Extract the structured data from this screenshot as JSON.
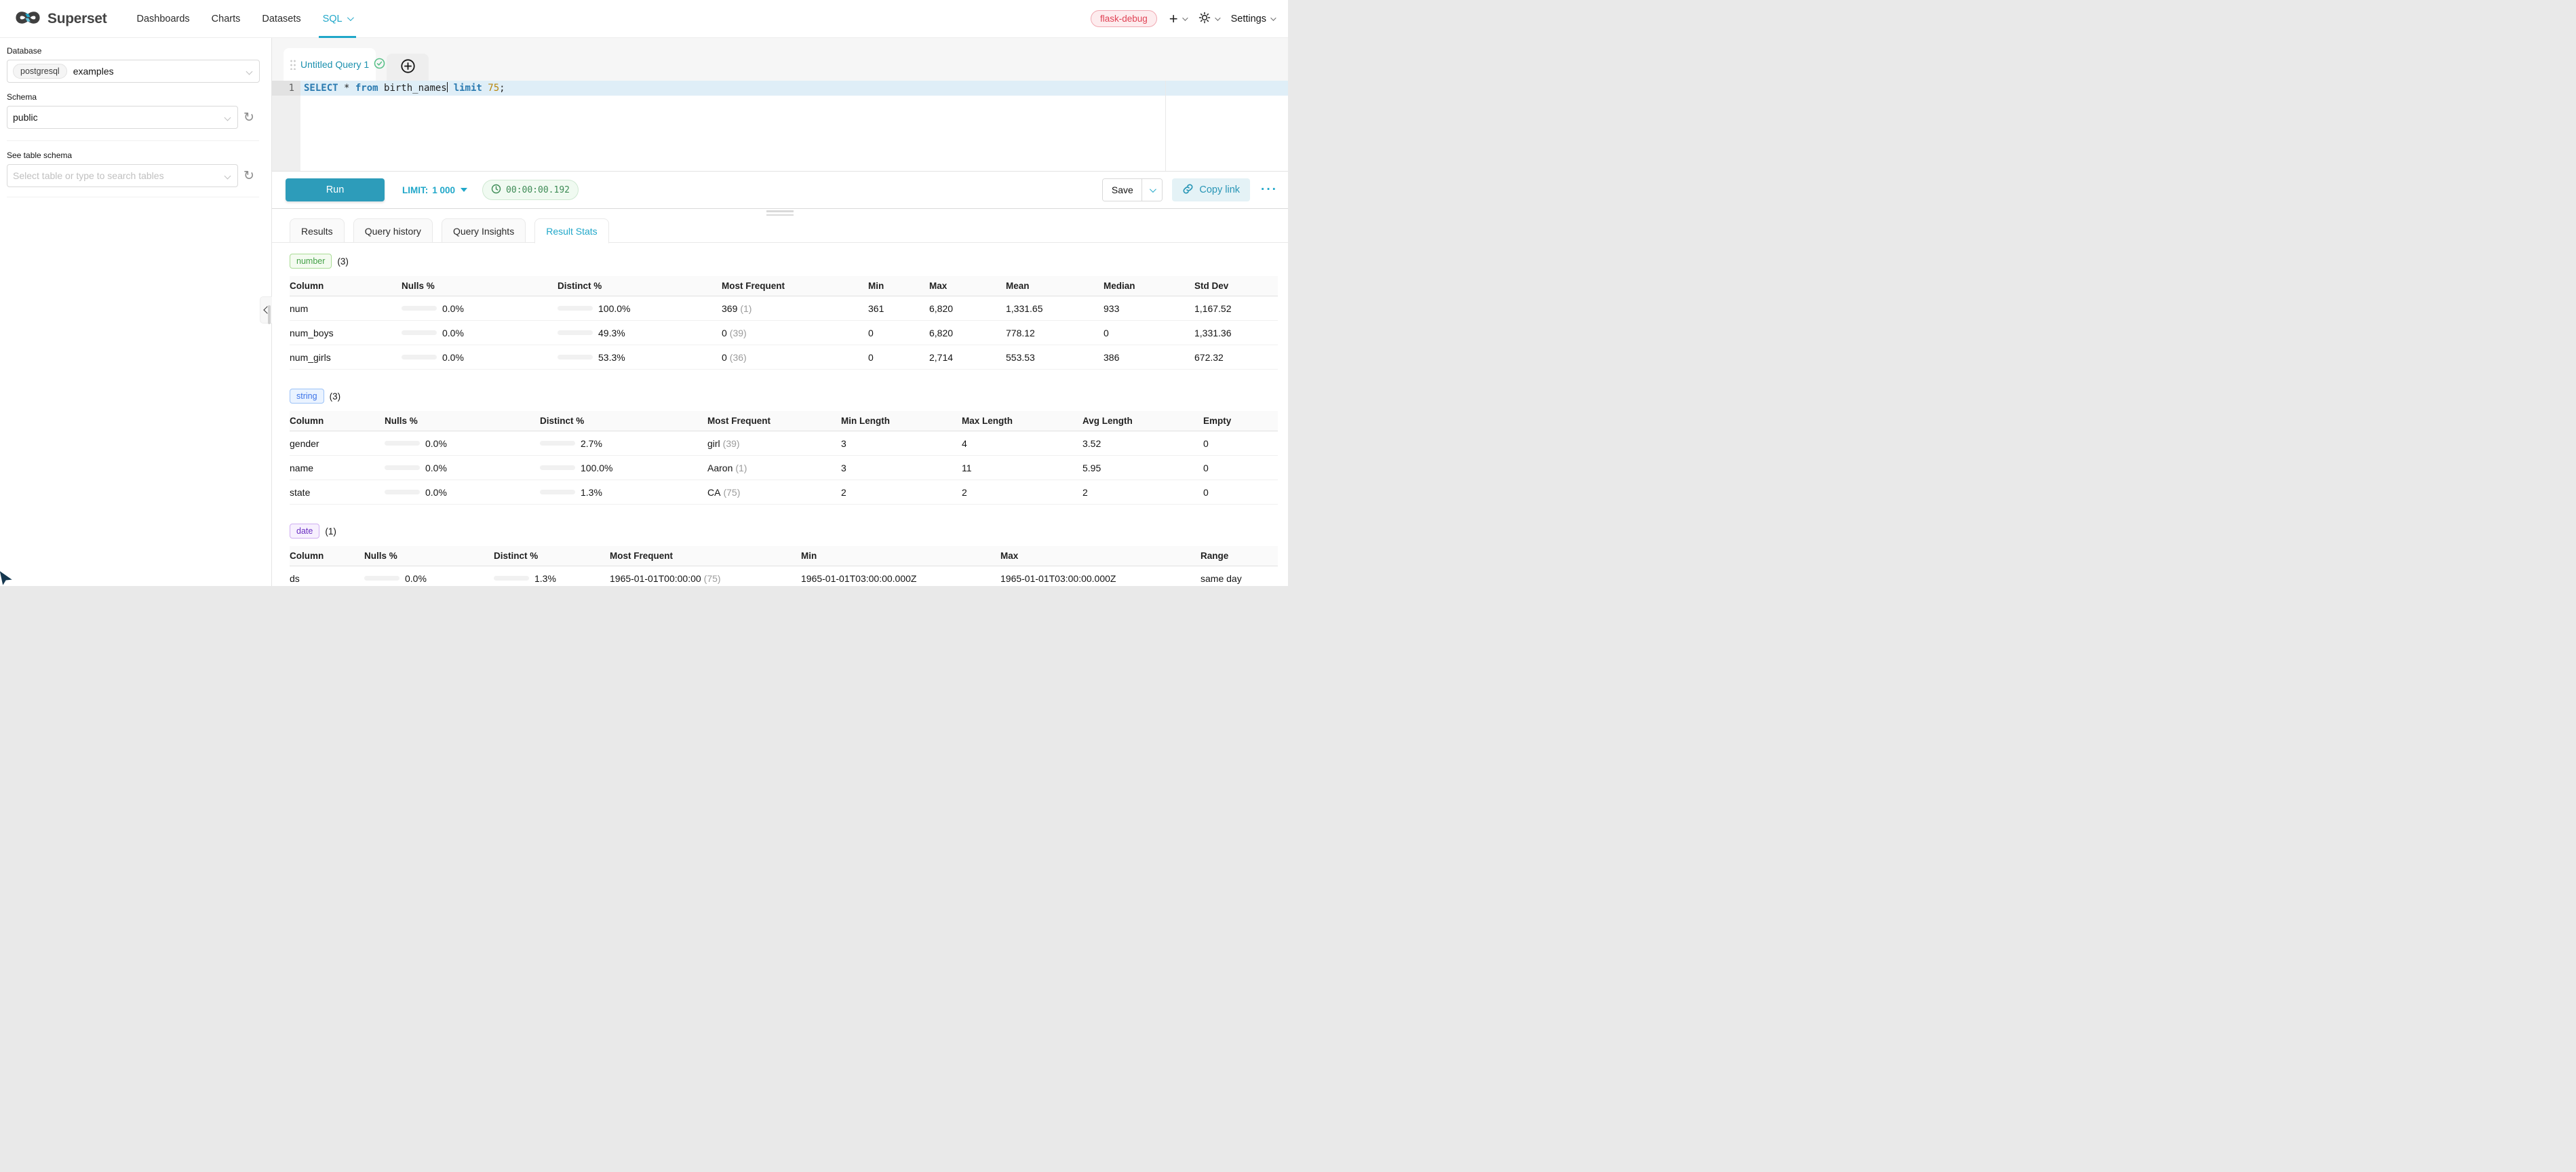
{
  "nav": {
    "brand": "Superset",
    "items": [
      {
        "label": "Dashboards"
      },
      {
        "label": "Charts"
      },
      {
        "label": "Datasets"
      },
      {
        "label": "SQL",
        "active": true
      }
    ],
    "env_badge": "flask-debug",
    "settings_label": "Settings"
  },
  "sidebar": {
    "database_label": "Database",
    "database_engine": "postgresql",
    "database_name": "examples",
    "schema_label": "Schema",
    "schema_value": "public",
    "table_label": "See table schema",
    "table_placeholder": "Select table or type to search tables"
  },
  "editor": {
    "tab_title": "Untitled Query 1",
    "line_number": "1",
    "sql_tokens": [
      {
        "text": "SELECT",
        "type": "keyword"
      },
      {
        "text": " * ",
        "type": "plain"
      },
      {
        "text": "from",
        "type": "keyword"
      },
      {
        "text": " birth_names",
        "type": "plain"
      },
      {
        "text": " ",
        "type": "plain"
      },
      {
        "text": "limit",
        "type": "keyword"
      },
      {
        "text": " ",
        "type": "plain"
      },
      {
        "text": "75",
        "type": "number"
      },
      {
        "text": ";",
        "type": "plain"
      }
    ]
  },
  "toolbar": {
    "run_label": "Run",
    "limit_label": "LIMIT:",
    "limit_value": "1 000",
    "elapsed": "00:00:00.192",
    "save_label": "Save",
    "copy_link_label": "Copy link",
    "more_label": "···"
  },
  "results": {
    "tabs": [
      {
        "label": "Results"
      },
      {
        "label": "Query history"
      },
      {
        "label": "Query Insights"
      },
      {
        "label": "Result Stats",
        "active": true
      }
    ]
  },
  "stats": {
    "number": {
      "badge": "number",
      "count": "(3)",
      "headers": [
        "Column",
        "Nulls %",
        "Distinct %",
        "Most Frequent",
        "Min",
        "Max",
        "Mean",
        "Median",
        "Std Dev"
      ],
      "rows": [
        {
          "column": "num",
          "nulls_pct": 0.0,
          "nulls_label": "0.0%",
          "distinct_pct": 100.0,
          "distinct_label": "100.0%",
          "mf_value": "369",
          "mf_count": "(1)",
          "min": "361",
          "max": "6,820",
          "mean": "1,331.65",
          "median": "933",
          "std_dev": "1,167.52"
        },
        {
          "column": "num_boys",
          "nulls_pct": 0.0,
          "nulls_label": "0.0%",
          "distinct_pct": 49.3,
          "distinct_label": "49.3%",
          "mf_value": "0",
          "mf_count": "(39)",
          "min": "0",
          "max": "6,820",
          "mean": "778.12",
          "median": "0",
          "std_dev": "1,331.36"
        },
        {
          "column": "num_girls",
          "nulls_pct": 0.0,
          "nulls_label": "0.0%",
          "distinct_pct": 53.3,
          "distinct_label": "53.3%",
          "mf_value": "0",
          "mf_count": "(36)",
          "min": "0",
          "max": "2,714",
          "mean": "553.53",
          "median": "386",
          "std_dev": "672.32"
        }
      ]
    },
    "string": {
      "badge": "string",
      "count": "(3)",
      "headers": [
        "Column",
        "Nulls %",
        "Distinct %",
        "Most Frequent",
        "Min Length",
        "Max Length",
        "Avg Length",
        "Empty"
      ],
      "rows": [
        {
          "column": "gender",
          "nulls_pct": 0.0,
          "nulls_label": "0.0%",
          "distinct_pct": 2.7,
          "distinct_label": "2.7%",
          "mf_value": "girl",
          "mf_count": "(39)",
          "min_length": "3",
          "max_length": "4",
          "avg_length": "3.52",
          "empty": "0"
        },
        {
          "column": "name",
          "nulls_pct": 0.0,
          "nulls_label": "0.0%",
          "distinct_pct": 100.0,
          "distinct_label": "100.0%",
          "mf_value": "Aaron",
          "mf_count": "(1)",
          "min_length": "3",
          "max_length": "11",
          "avg_length": "5.95",
          "empty": "0"
        },
        {
          "column": "state",
          "nulls_pct": 0.0,
          "nulls_label": "0.0%",
          "distinct_pct": 1.3,
          "distinct_label": "1.3%",
          "mf_value": "CA",
          "mf_count": "(75)",
          "min_length": "2",
          "max_length": "2",
          "avg_length": "2",
          "empty": "0"
        }
      ]
    },
    "date": {
      "badge": "date",
      "count": "(1)",
      "headers": [
        "Column",
        "Nulls %",
        "Distinct %",
        "Most Frequent",
        "Min",
        "Max",
        "Range"
      ],
      "rows": [
        {
          "column": "ds",
          "nulls_pct": 0.0,
          "nulls_label": "0.0%",
          "distinct_pct": 1.3,
          "distinct_label": "1.3%",
          "mf_value": "1965-01-01T00:00:00",
          "mf_count": "(75)",
          "min": "1965-01-01T03:00:00.000Z",
          "max": "1965-01-01T03:00:00.000Z",
          "range": "same day"
        }
      ]
    }
  },
  "colors": {
    "accent_teal": "#20a7c9",
    "run_button": "#2d9cba",
    "bar_fill_green": "#5ac189",
    "env_badge_red": "#e04355",
    "badge_number_green": "#43a047",
    "badge_string_blue": "#3d74e8",
    "badge_date_purple": "#6a30c2",
    "keyword_blue": "#2a7ab0",
    "number_literal_orange": "#b8860b",
    "timer_green": "#3d8b55"
  }
}
